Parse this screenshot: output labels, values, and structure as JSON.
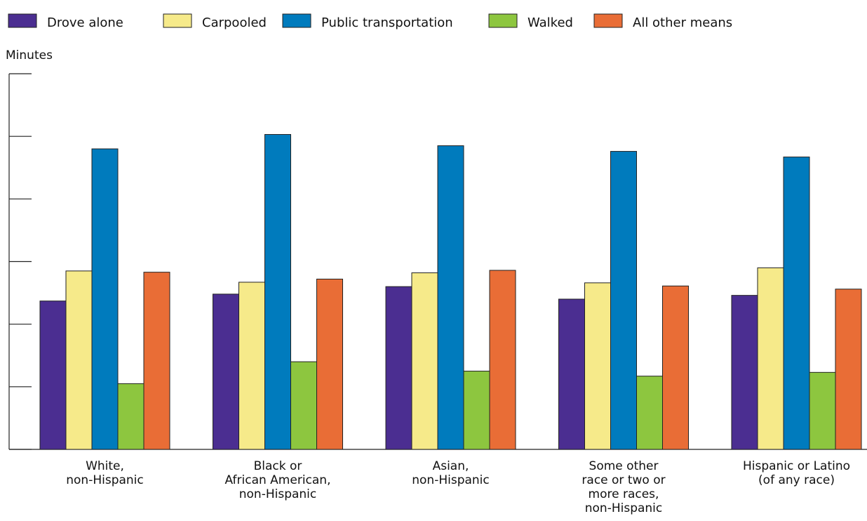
{
  "chart_data": {
    "type": "bar",
    "title": "",
    "ylabel": "Minutes",
    "xlabel": "",
    "ylim": [
      0,
      60
    ],
    "yticks": [
      0,
      10,
      20,
      30,
      40,
      50,
      60
    ],
    "y_tick_labels_shown": false,
    "grid": false,
    "legend_position": "top",
    "categories": [
      [
        "White,",
        "non-Hispanic"
      ],
      [
        "Black or",
        "African American,",
        "non-Hispanic"
      ],
      [
        "Asian,",
        "non-Hispanic"
      ],
      [
        "Some other",
        "race or two or",
        "more races,",
        "non-Hispanic"
      ],
      [
        "Hispanic or Latino",
        "(of any race)"
      ]
    ],
    "series": [
      {
        "name": "Drove alone",
        "color": "#4b2e91",
        "values": [
          23.7,
          24.8,
          26.0,
          24.0,
          24.6
        ]
      },
      {
        "name": "Carpooled",
        "color": "#f6ea8a",
        "values": [
          28.5,
          26.7,
          28.2,
          26.6,
          29.0
        ]
      },
      {
        "name": "Public transportation",
        "color": "#007bbd",
        "values": [
          48.0,
          50.3,
          48.5,
          47.6,
          46.7
        ]
      },
      {
        "name": "Walked",
        "color": "#8dc63f",
        "values": [
          10.5,
          14.0,
          12.5,
          11.7,
          12.3
        ]
      },
      {
        "name": "All other means",
        "color": "#e96d36",
        "values": [
          28.3,
          27.2,
          28.6,
          26.1,
          25.6
        ]
      }
    ]
  }
}
